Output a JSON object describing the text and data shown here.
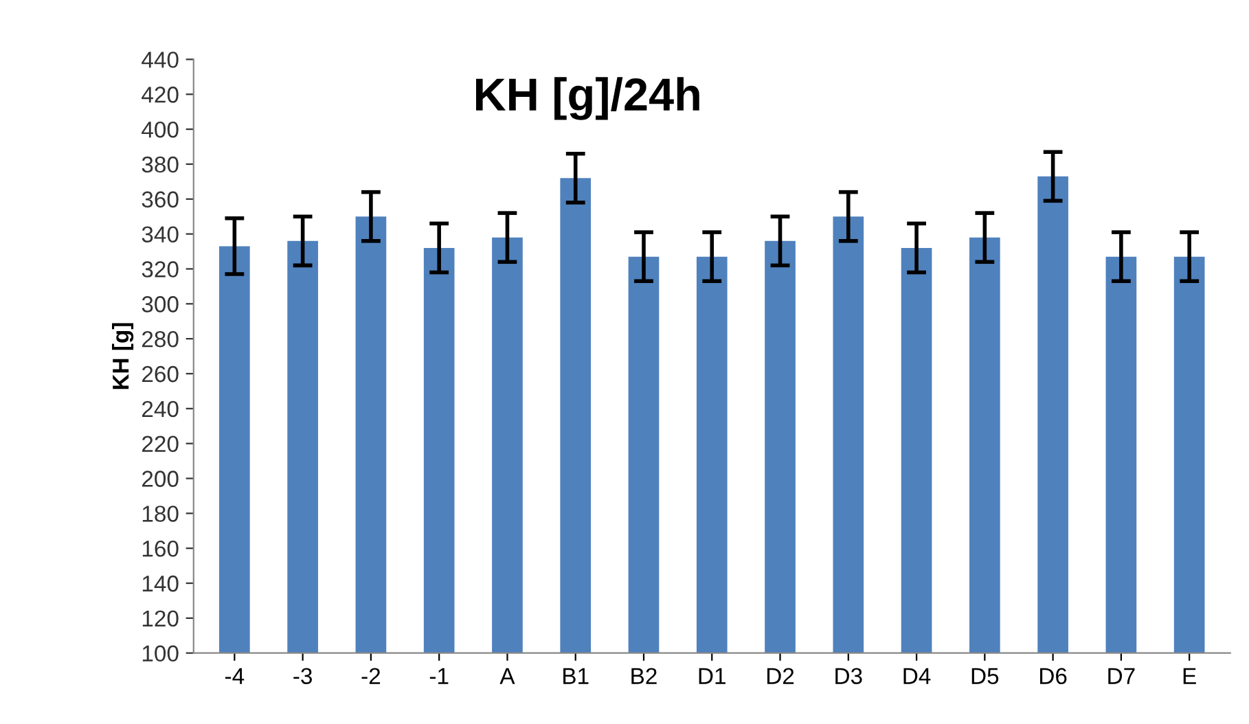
{
  "chart_data": {
    "type": "bar",
    "title": "KH [g]/24h",
    "ylabel": "KH [g]",
    "categories": [
      "-4",
      "-3",
      "-2",
      "-1",
      "A",
      "B1",
      "B2",
      "D1",
      "D2",
      "D3",
      "D4",
      "D5",
      "D6",
      "D7",
      "E"
    ],
    "values": [
      333,
      336,
      350,
      332,
      338,
      372,
      327,
      327,
      336,
      350,
      332,
      338,
      373,
      327,
      327
    ],
    "errors": [
      16,
      14,
      14,
      14,
      14,
      14,
      14,
      14,
      14,
      14,
      14,
      14,
      14,
      14,
      14
    ],
    "color": "#4f81bd",
    "ylim": [
      100,
      440
    ],
    "yticks": [
      100,
      120,
      140,
      160,
      180,
      200,
      220,
      240,
      260,
      280,
      300,
      320,
      340,
      360,
      380,
      400,
      420,
      440
    ],
    "grid": false,
    "legend": false
  }
}
